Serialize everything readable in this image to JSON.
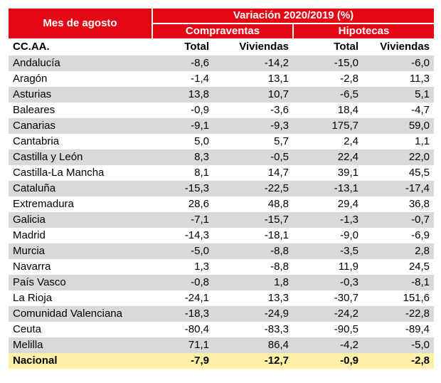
{
  "header": {
    "title": "Mes de agosto",
    "variation_label": "Variación 2020/2019 (%)",
    "group1": "Compraventas",
    "group2": "Hipotecas"
  },
  "columns": [
    "CC.AA.",
    "Total",
    "Viviendas",
    "Total",
    "Viviendas"
  ],
  "rows": [
    [
      "Andalucía",
      "-8,6",
      "-14,2",
      "-15,0",
      "-6,0"
    ],
    [
      "Aragón",
      "-1,4",
      "13,1",
      "-2,8",
      "11,3"
    ],
    [
      "Asturias",
      "13,8",
      "10,7",
      "-6,5",
      "5,1"
    ],
    [
      "Baleares",
      "-0,9",
      "-3,6",
      "18,4",
      "-4,7"
    ],
    [
      "Canarias",
      "-9,1",
      "-9,3",
      "175,7",
      "59,0"
    ],
    [
      "Cantabria",
      "5,0",
      "5,7",
      "2,4",
      "1,1"
    ],
    [
      "Castilla y León",
      "8,3",
      "-0,5",
      "22,4",
      "22,0"
    ],
    [
      "Castilla-La Mancha",
      "8,1",
      "14,7",
      "39,1",
      "45,5"
    ],
    [
      "Cataluña",
      "-15,3",
      "-22,5",
      "-13,1",
      "-17,4"
    ],
    [
      "Extremadura",
      "28,6",
      "48,8",
      "29,4",
      "36,8"
    ],
    [
      "Galicia",
      "-7,1",
      "-15,7",
      "-1,3",
      "-0,7"
    ],
    [
      "Madrid",
      "-14,3",
      "-18,1",
      "-9,0",
      "-6,9"
    ],
    [
      "Murcia",
      "-5,0",
      "-8,8",
      "-3,5",
      "2,8"
    ],
    [
      "Navarra",
      "1,3",
      "-8,8",
      "11,9",
      "24,5"
    ],
    [
      "País Vasco",
      "-0,8",
      "1,8",
      "-0,3",
      "-8,1"
    ],
    [
      "La Rioja",
      "-24,1",
      "13,3",
      "-30,7",
      "151,6"
    ],
    [
      "Comunidad Valenciana",
      "-18,3",
      "-24,9",
      "-24,2",
      "-22,8"
    ],
    [
      "Ceuta",
      "-80,4",
      "-83,3",
      "-90,5",
      "-89,4"
    ],
    [
      "Melilla",
      "71,1",
      "86,4",
      "-4,2",
      "-5,0"
    ]
  ],
  "total_row": [
    "Nacional",
    "-7,9",
    "-12,7",
    "-0,9",
    "-2,8"
  ],
  "colors": {
    "header_red": "#e30613",
    "stripe_gray": "#d9d9d9",
    "total_yellow": "#fff2a8"
  }
}
